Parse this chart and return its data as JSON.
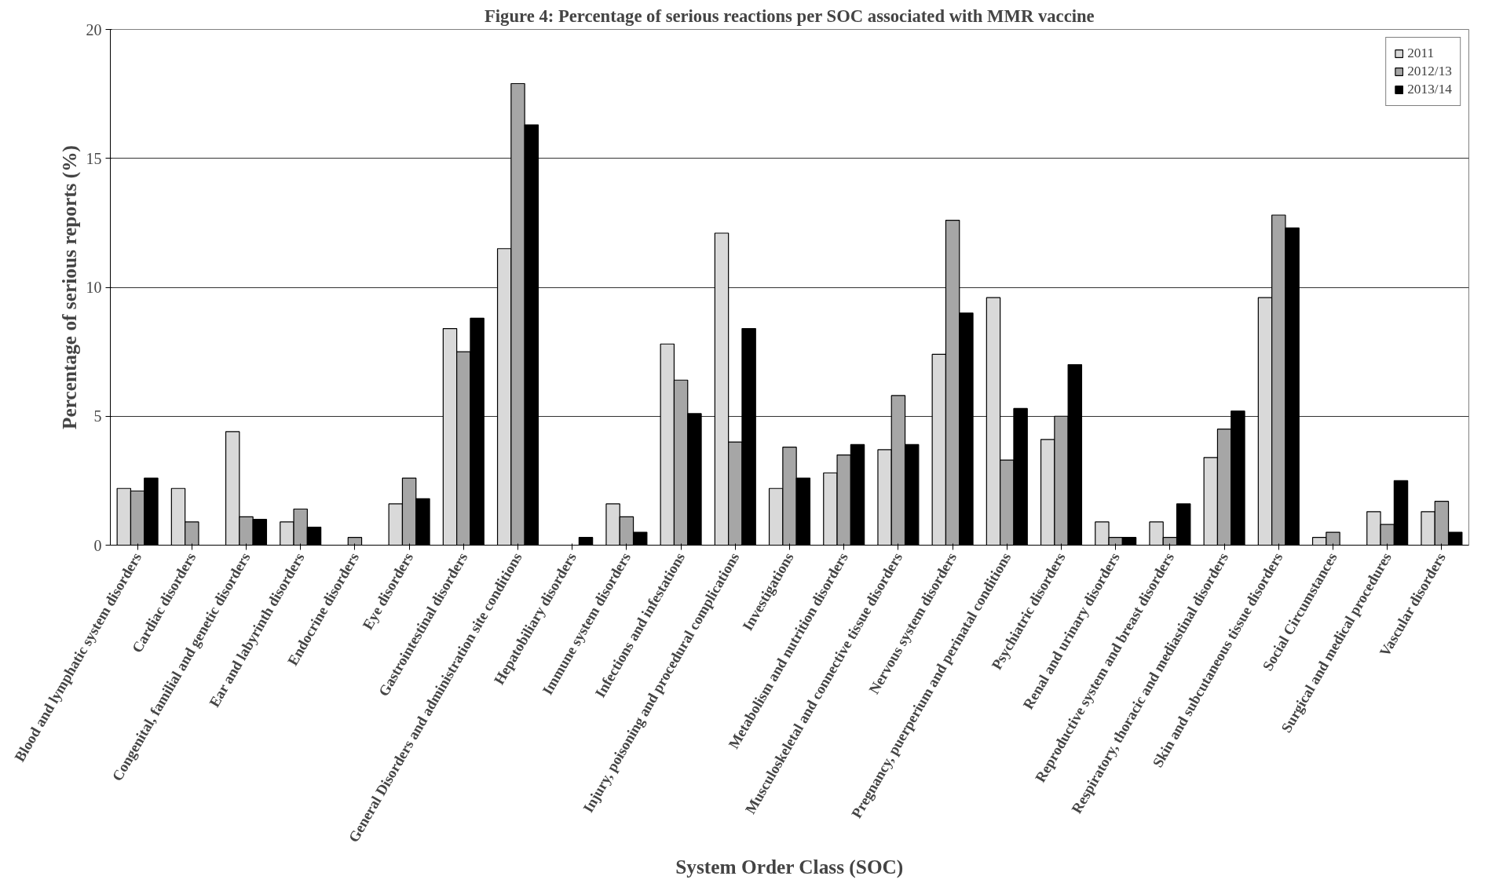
{
  "chart_data": {
    "type": "bar",
    "title": "Figure 4: Percentage of serious reactions per SOC associated with MMR vaccine",
    "xlabel": "System Order Class (SOC)",
    "ylabel": "Percentage of serious reports (%)",
    "categories": [
      "Blood and lymphatic system disorders",
      "Cardiac disorders",
      "Congenital, familial and genetic disorders",
      "Ear and labyrinth disorders",
      "Endocrine disorders",
      "Eye disorders",
      "Gastrointestinal disorders",
      "General Disorders and administration site conditions",
      "Hepatobiliary disorders",
      "Immune system disorders",
      "Infections and infestations",
      "Injury, poisoning and procedural complications",
      "Investigations",
      "Metabolism and nutrition disorders",
      "Musculoskeletal and connective tissue disorders",
      "Nervous system disorders",
      "Pregnancy, puerperium and perinatal conditions",
      "Psychiatric disorders",
      "Renal and urinary disorders",
      "Reproductive system and breast disorders",
      "Respiratory, thoracic and mediastinal disorders",
      "Skin and subcutaneous tissue disorders",
      "Social Circumstances",
      "Surgical and medical procedures",
      "Vascular disorders"
    ],
    "series": [
      {
        "name": "2011",
        "color": "#d9d9d9",
        "values": [
          2.2,
          2.2,
          4.4,
          0.9,
          null,
          1.6,
          8.4,
          11.5,
          null,
          1.6,
          7.8,
          12.1,
          2.2,
          2.8,
          3.7,
          7.4,
          9.6,
          4.1,
          0.9,
          0.9,
          3.4,
          9.6,
          0.3,
          1.3,
          1.3
        ]
      },
      {
        "name": "2012/13",
        "color": "#a6a6a6",
        "values": [
          2.1,
          0.9,
          1.1,
          1.4,
          0.3,
          2.6,
          7.5,
          17.9,
          null,
          1.1,
          6.4,
          4.0,
          3.8,
          3.5,
          5.8,
          12.6,
          3.3,
          5.0,
          0.3,
          0.3,
          4.5,
          12.8,
          0.5,
          0.8,
          1.7
        ]
      },
      {
        "name": "2013/14",
        "color": "#000000",
        "values": [
          2.6,
          null,
          1.0,
          0.7,
          null,
          1.8,
          8.8,
          16.3,
          0.3,
          0.5,
          5.1,
          8.4,
          2.6,
          3.9,
          3.9,
          9.0,
          5.3,
          7.0,
          0.3,
          1.6,
          5.2,
          12.3,
          null,
          2.5,
          0.5
        ]
      }
    ],
    "ylim": [
      0,
      20
    ],
    "yticks": [
      0,
      5,
      10,
      15,
      20
    ],
    "grid": "y",
    "legend": "top right"
  }
}
